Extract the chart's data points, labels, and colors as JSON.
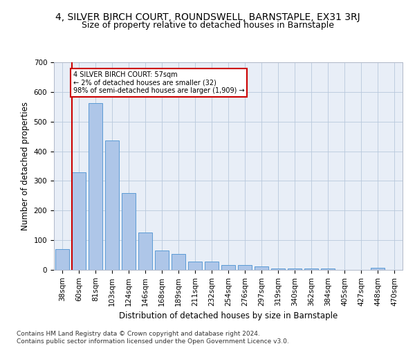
{
  "title": "4, SILVER BIRCH COURT, ROUNDSWELL, BARNSTAPLE, EX31 3RJ",
  "subtitle": "Size of property relative to detached houses in Barnstaple",
  "xlabel": "Distribution of detached houses by size in Barnstaple",
  "ylabel": "Number of detached properties",
  "categories": [
    "38sqm",
    "60sqm",
    "81sqm",
    "103sqm",
    "124sqm",
    "146sqm",
    "168sqm",
    "189sqm",
    "211sqm",
    "232sqm",
    "254sqm",
    "276sqm",
    "297sqm",
    "319sqm",
    "340sqm",
    "362sqm",
    "384sqm",
    "405sqm",
    "427sqm",
    "448sqm",
    "470sqm"
  ],
  "values": [
    70,
    328,
    563,
    437,
    258,
    127,
    65,
    53,
    29,
    29,
    16,
    16,
    12,
    5,
    5,
    5,
    5,
    0,
    0,
    6,
    0
  ],
  "bar_color": "#aec6e8",
  "bar_edge_color": "#5b9bd5",
  "highlight_bar_index": 1,
  "annotation_text": "4 SILVER BIRCH COURT: 57sqm\n← 2% of detached houses are smaller (32)\n98% of semi-detached houses are larger (1,909) →",
  "annotation_box_color": "#ffffff",
  "annotation_box_edge": "#cc0000",
  "red_line_color": "#cc0000",
  "ylim": [
    0,
    700
  ],
  "yticks": [
    0,
    100,
    200,
    300,
    400,
    500,
    600,
    700
  ],
  "plot_bg_color": "#e8eef7",
  "footer": "Contains HM Land Registry data © Crown copyright and database right 2024.\nContains public sector information licensed under the Open Government Licence v3.0.",
  "title_fontsize": 10,
  "subtitle_fontsize": 9,
  "xlabel_fontsize": 8.5,
  "ylabel_fontsize": 8.5,
  "tick_fontsize": 7.5,
  "footer_fontsize": 6.5
}
